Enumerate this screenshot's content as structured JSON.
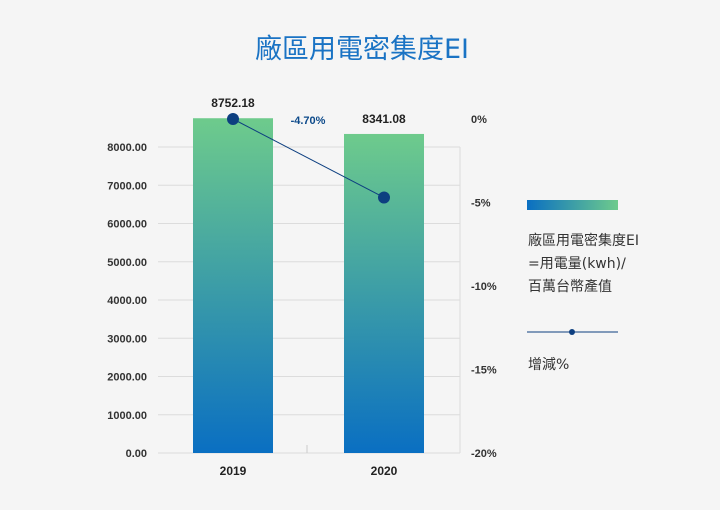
{
  "chart_data": {
    "type": "bar",
    "title": "廠區用電密集度EI",
    "categories": [
      "2019",
      "2020"
    ],
    "series": [
      {
        "name": "廠區用電密集度EI=用電量(kwh)/百萬台幣產值",
        "legend_lines": [
          "廠區用電密集度EI",
          "=用電量(kwh)/",
          "百萬台幣產值"
        ],
        "type": "bar",
        "axis": "left",
        "values": [
          8752.18,
          8341.08
        ],
        "value_labels": [
          "8752.18",
          "8341.08"
        ],
        "gradient": {
          "top": "#6ecb8c",
          "bottom": "#0a6fc2"
        }
      },
      {
        "name": "增減%",
        "type": "line",
        "axis": "right",
        "values": [
          0,
          -4.7
        ],
        "color": "#0d3f80"
      }
    ],
    "annotations": [
      {
        "text": "-4.70%",
        "between": [
          "2019",
          "2020"
        ]
      }
    ],
    "y_left": {
      "ylim": [
        0,
        8000
      ],
      "ticks": [
        "0.00",
        "1000.00",
        "2000.00",
        "3000.00",
        "4000.00",
        "5000.00",
        "6000.00",
        "7000.00",
        "8000.00"
      ]
    },
    "y_right": {
      "ylim": [
        -20,
        0
      ],
      "ticks": [
        "0%",
        "-5%",
        "-10%",
        "-15%",
        "-20%"
      ]
    },
    "grid": true,
    "legend": "right"
  }
}
